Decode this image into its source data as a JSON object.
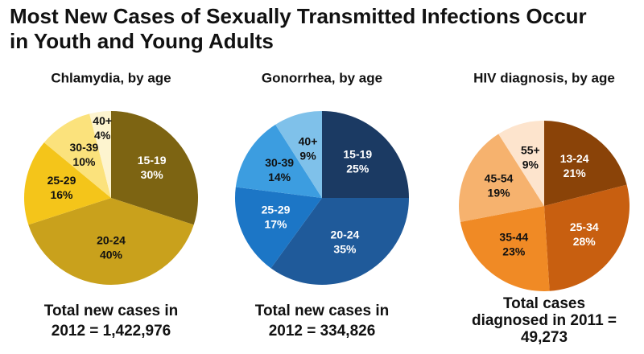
{
  "title": [
    "Most New Cases of Sexually Transmitted Infections Occur",
    "in Youth and Young Adults"
  ],
  "chart_data": [
    {
      "type": "pie",
      "title": "Chlamydia, by age",
      "categories": [
        "15-19",
        "20-24",
        "25-29",
        "30-39",
        "40+"
      ],
      "values": [
        30,
        40,
        16,
        10,
        4
      ],
      "value_labels": [
        "30%",
        "40%",
        "16%",
        "10%",
        "4%"
      ],
      "colors": [
        "#7d6412",
        "#c9a11c",
        "#f4c51a",
        "#fbe27c",
        "#fdf4cf"
      ],
      "note": [
        "Total new cases in",
        "2012 = 1,422,976"
      ]
    },
    {
      "type": "pie",
      "title": "Gonorrhea, by age",
      "categories": [
        "15-19",
        "20-24",
        "25-29",
        "30-39",
        "40+"
      ],
      "values": [
        25,
        35,
        17,
        14,
        9
      ],
      "value_labels": [
        "25%",
        "35%",
        "17%",
        "14%",
        "9%"
      ],
      "colors": [
        "#1b3a63",
        "#1f5a9a",
        "#1c76c6",
        "#3c9de0",
        "#7fc1ea"
      ],
      "note": [
        "Total new cases in",
        "2012 = 334,826"
      ]
    },
    {
      "type": "pie",
      "title": "HIV diagnosis, by age",
      "categories": [
        "13-24",
        "25-34",
        "35-44",
        "45-54",
        "55+"
      ],
      "values": [
        21,
        28,
        23,
        19,
        9
      ],
      "value_labels": [
        "21%",
        "28%",
        "23%",
        "19%",
        "9%"
      ],
      "colors": [
        "#8a4308",
        "#c85f10",
        "#f08a25",
        "#f6b26e",
        "#fde4cd"
      ],
      "note": [
        "Total cases",
        "diagnosed in 2011 =",
        "49,273"
      ]
    }
  ]
}
